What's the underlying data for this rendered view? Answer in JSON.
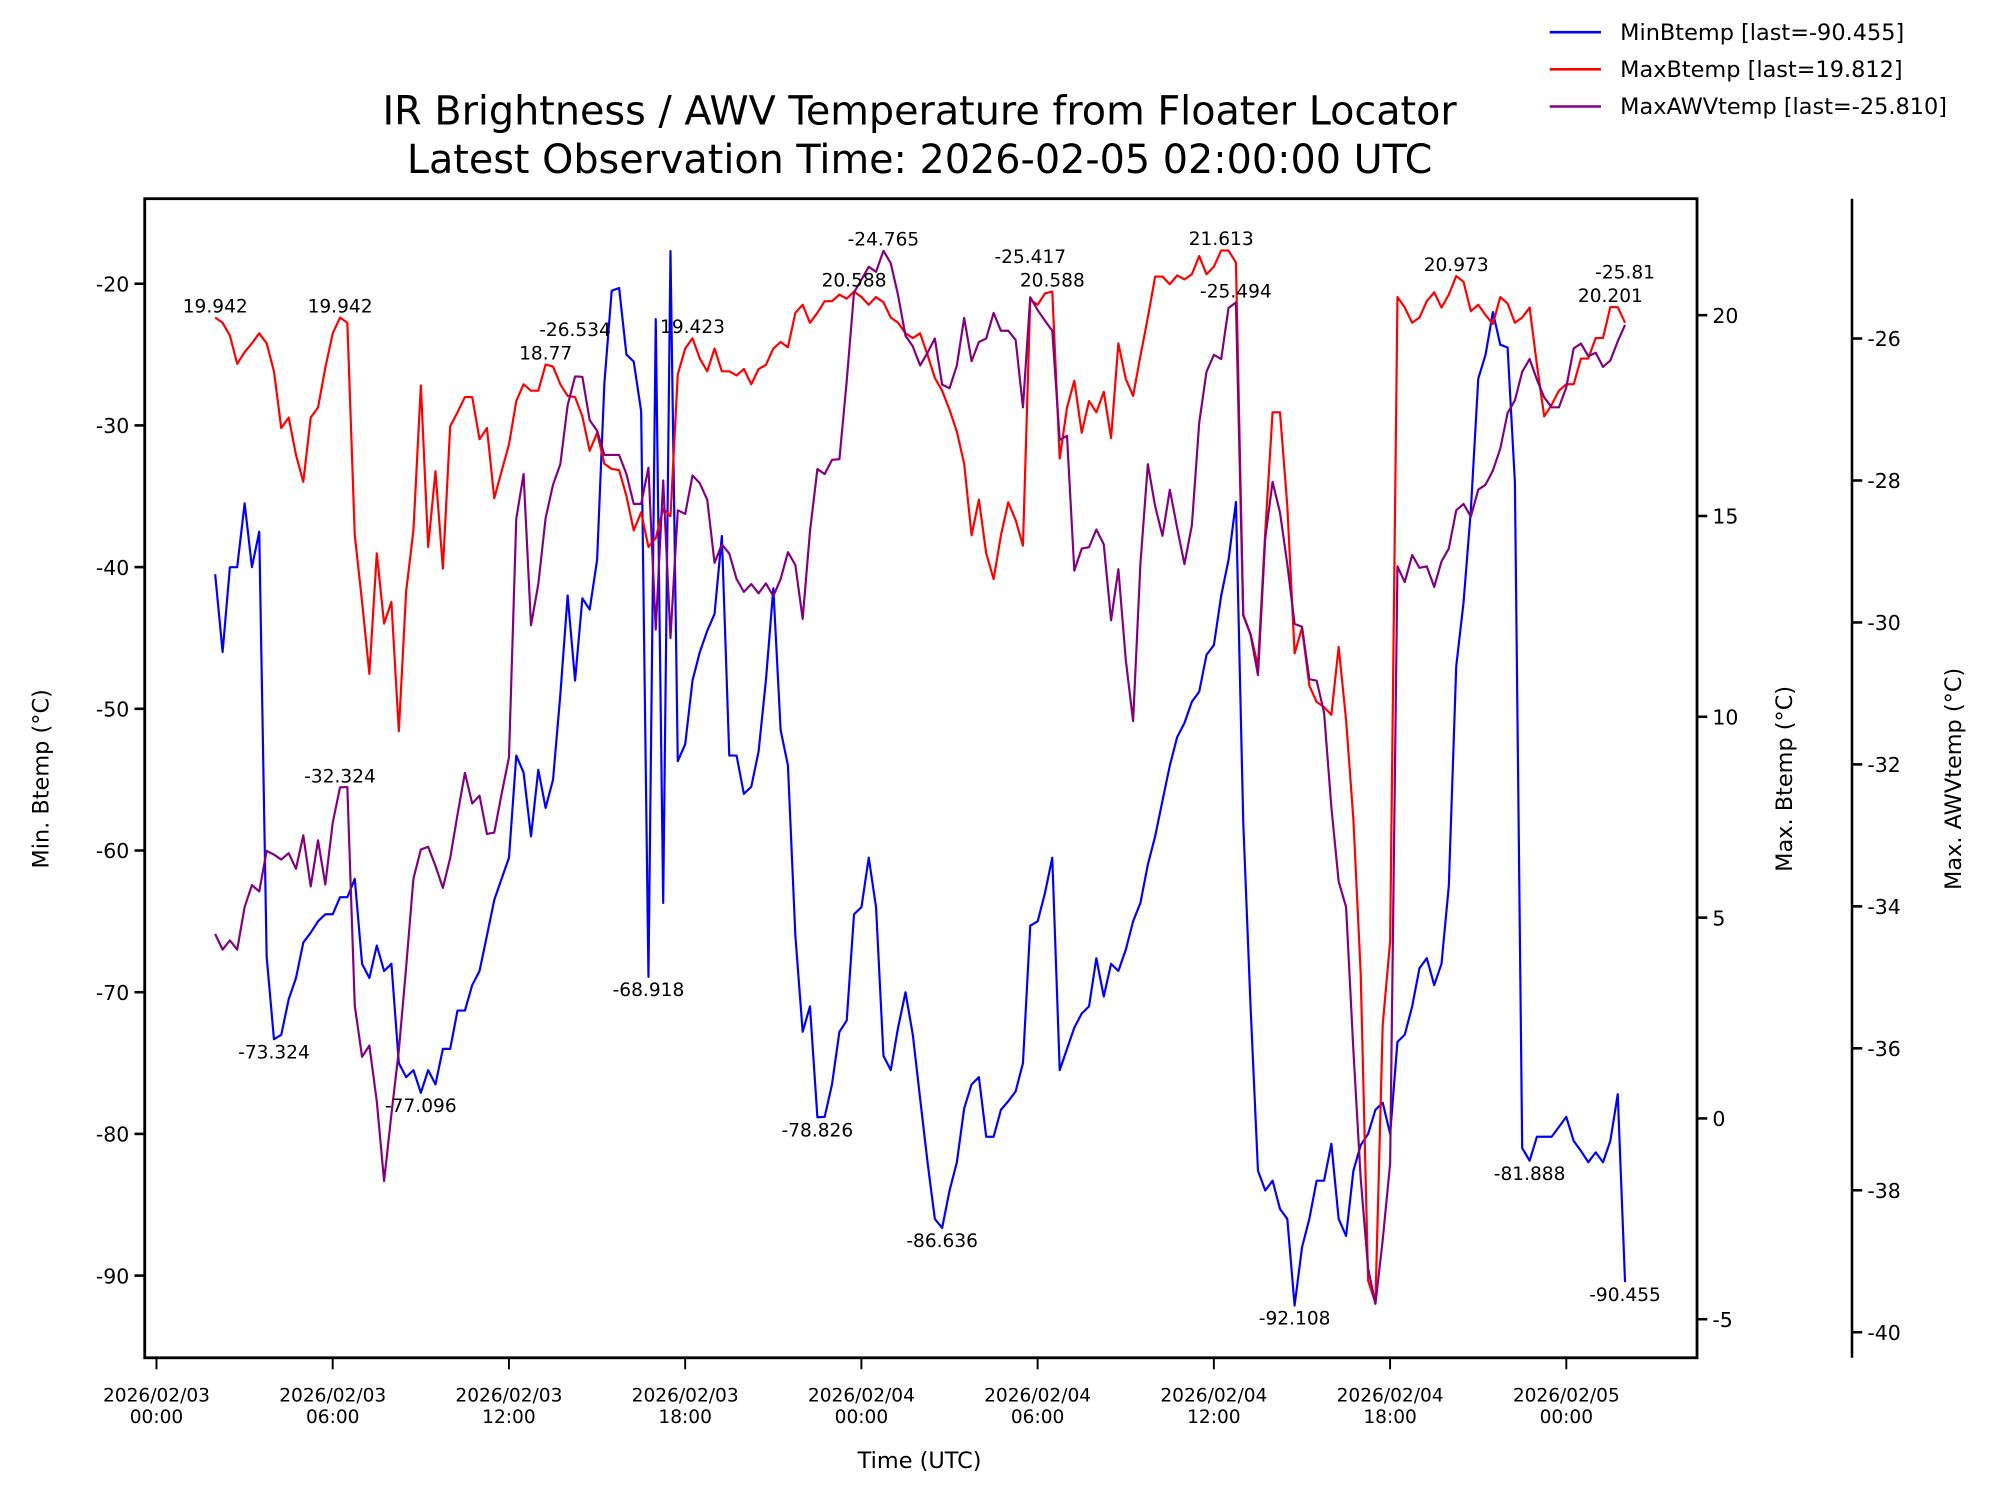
{
  "chart_data": {
    "type": "line",
    "title": "IR Brightness / AWV Temperature from Floater Locator",
    "subtitle": "Latest Observation Time: 2026-02-05 02:00:00 UTC",
    "xlabel": "Time (UTC)",
    "x_start": "2026-02-03 02:00",
    "x_start_hours": 2,
    "interval_hours": 0.25,
    "xlim_hours": [
      -0.4,
      52.45
    ],
    "x_ticks": [
      {
        "hours": 0,
        "line1": "2026/02/03",
        "line2": "00:00"
      },
      {
        "hours": 6,
        "line1": "2026/02/03",
        "line2": "06:00"
      },
      {
        "hours": 12,
        "line1": "2026/02/03",
        "line2": "12:00"
      },
      {
        "hours": 18,
        "line1": "2026/02/03",
        "line2": "18:00"
      },
      {
        "hours": 24,
        "line1": "2026/02/04",
        "line2": "00:00"
      },
      {
        "hours": 30,
        "line1": "2026/02/04",
        "line2": "06:00"
      },
      {
        "hours": 36,
        "line1": "2026/02/04",
        "line2": "12:00"
      },
      {
        "hours": 42,
        "line1": "2026/02/04",
        "line2": "18:00"
      },
      {
        "hours": 48,
        "line1": "2026/02/05",
        "line2": "00:00"
      }
    ],
    "axes": {
      "min": {
        "label": "Min. Btemp (°C)",
        "ylim": [
          -95.8,
          -14.0
        ],
        "ticks": [
          -90,
          -80,
          -70,
          -60,
          -50,
          -40,
          -30,
          -20
        ],
        "side": "left"
      },
      "max": {
        "label": "Max. Btemp (°C)",
        "ylim": [
          -5.96,
          22.9
        ],
        "ticks": [
          -5,
          0,
          5,
          10,
          15,
          20
        ],
        "side": "right"
      },
      "awv": {
        "label": "Max. AWVtemp (°C)",
        "ylim": [
          -40.36,
          -24.03
        ],
        "ticks": [
          -40,
          -38,
          -36,
          -34,
          -32,
          -30,
          -28,
          -26
        ],
        "side": "right-outer"
      }
    },
    "legend_position": "top-right (outside)",
    "series": [
      {
        "key": "min",
        "name": "MinBtemp [last=-90.455]",
        "color": "#0000ff",
        "axis": "min",
        "values": [
          -40.5,
          -46,
          -40,
          -40,
          -35.5,
          -40,
          -37.5,
          -67.5,
          -73.324,
          -73,
          -70.5,
          -69,
          -66.5,
          -65.8,
          -65,
          -64.5,
          -64.5,
          -63.3,
          -63.3,
          -62,
          -68,
          -69,
          -66.7,
          -68.5,
          -68,
          -75,
          -76,
          -75.5,
          -77.096,
          -75.5,
          -76.5,
          -74,
          -74,
          -71.3,
          -71.3,
          -69.5,
          -68.5,
          -66,
          -63.5,
          -62,
          -60.5,
          -53.3,
          -54.5,
          -59,
          -54.3,
          -57,
          -55,
          -49,
          -42,
          -48,
          -42.2,
          -43,
          -39.5,
          -27,
          -20.5,
          -20.3,
          -25,
          -25.5,
          -29,
          -68.918,
          -22.5,
          -63.7,
          -17.7,
          -53.7,
          -52.5,
          -48,
          -46,
          -44.5,
          -43.3,
          -37.8,
          -53.3,
          -53.3,
          -56,
          -55.5,
          -53,
          -48,
          -41.5,
          -51.5,
          -54,
          -66,
          -72.8,
          -71,
          -78.826,
          -78.8,
          -76.5,
          -72.8,
          -72,
          -64.5,
          -64,
          -60.5,
          -64,
          -74.5,
          -75.5,
          -72.5,
          -70,
          -73,
          -77.5,
          -82,
          -86,
          -86.636,
          -84,
          -82,
          -78.2,
          -76.5,
          -76,
          -80.2,
          -80.2,
          -78.3,
          -77.7,
          -77,
          -75,
          -65.3,
          -65,
          -63,
          -60.5,
          -75.5,
          -74,
          -72.5,
          -71.5,
          -71,
          -67.6,
          -70.3,
          -68,
          -68.5,
          -67,
          -65,
          -63.7,
          -61,
          -59,
          -56.5,
          -54,
          -52,
          -51,
          -49.5,
          -48.8,
          -46.2,
          -45.5,
          -42,
          -39.5,
          -35.4,
          -58,
          -71,
          -82.6,
          -84,
          -83.3,
          -85.3,
          -86,
          -92.108,
          -88,
          -86,
          -83.3,
          -83.3,
          -80.7,
          -86,
          -87.2,
          -82.6,
          -80.8,
          -80,
          -78.3,
          -77.8,
          -80,
          -73.5,
          -73,
          -71,
          -68.3,
          -67.6,
          -69.5,
          -68,
          -62.5,
          -47,
          -42.5,
          -36,
          -26.7,
          -25,
          -22,
          -24.3,
          -24.5,
          -34,
          -81,
          -81.888,
          -80.2,
          -80.2,
          -80.2,
          -79.5,
          -78.8,
          -80.5,
          -81.2,
          -82,
          -81.3,
          -82,
          -80.5,
          -77.2,
          -90.455
        ]
      },
      {
        "key": "max",
        "name": "MaxBtemp [last=19.812]",
        "color": "#ff0000",
        "axis": "max",
        "values": [
          19.942,
          19.81,
          19.49,
          18.79,
          19.08,
          19.3,
          19.55,
          19.3,
          18.6,
          17.19,
          17.45,
          16.52,
          15.85,
          17.45,
          17.7,
          18.69,
          19.55,
          19.942,
          19.81,
          14.52,
          12.86,
          11.07,
          14.07,
          12.32,
          12.86,
          9.64,
          13.12,
          14.64,
          18.25,
          14.23,
          16.11,
          13.69,
          17.23,
          17.58,
          17.96,
          17.96,
          16.91,
          17.19,
          15.44,
          16.11,
          16.78,
          17.86,
          18.28,
          18.12,
          18.12,
          18.77,
          18.72,
          18.28,
          17.99,
          17.96,
          17.48,
          16.62,
          17.07,
          16.3,
          16.17,
          16.14,
          15.5,
          14.64,
          15.09,
          14.23,
          14.45,
          15.18,
          14.99,
          18.53,
          19.17,
          19.423,
          18.92,
          18.6,
          19.17,
          18.6,
          18.6,
          18.5,
          18.66,
          18.28,
          18.66,
          18.76,
          19.17,
          19.33,
          19.2,
          20.06,
          20.26,
          19.81,
          20.06,
          20.35,
          20.35,
          20.51,
          20.41,
          20.588,
          20.45,
          20.26,
          20.45,
          20.32,
          19.94,
          19.81,
          19.55,
          19.43,
          19.55,
          19.01,
          18.44,
          18.12,
          17.64,
          17.1,
          16.3,
          14.52,
          15.41,
          14.07,
          13.43,
          14.52,
          15.34,
          14.9,
          14.26,
          20.38,
          20.26,
          20.54,
          20.588,
          16.43,
          17.7,
          18.37,
          17.07,
          17.86,
          17.58,
          18.09,
          16.94,
          19.3,
          18.41,
          17.99,
          18.98,
          19.94,
          20.96,
          20.96,
          20.77,
          20.99,
          20.89,
          21.02,
          21.47,
          21.02,
          21.21,
          21.613,
          21.61,
          21.31,
          12.54,
          12.06,
          11.26,
          14.61,
          17.58,
          17.58,
          15.25,
          11.58,
          12.22,
          10.78,
          10.37,
          10.24,
          10.05,
          11.74,
          9.92,
          7.44,
          3.61,
          -4.04,
          -4.6,
          2.33,
          4.41,
          20.45,
          20.19,
          19.81,
          19.94,
          20.35,
          20.57,
          20.19,
          20.51,
          20.973,
          20.83,
          20.1,
          20.26,
          20.0,
          19.78,
          20.45,
          20.29,
          19.81,
          19.94,
          20.19,
          18.76,
          17.48,
          17.77,
          18.12,
          18.28,
          18.28,
          18.92,
          18.92,
          19.43,
          19.43,
          20.201,
          20.2,
          19.812
        ]
      },
      {
        "key": "awv",
        "name": "MaxAWVtemp [last=-25.810]",
        "color": "#800080",
        "axis": "awv",
        "values": [
          -34.39,
          -34.61,
          -34.48,
          -34.61,
          -34.01,
          -33.7,
          -33.79,
          -33.22,
          -33.27,
          -33.34,
          -33.25,
          -33.47,
          -33.0,
          -33.72,
          -33.07,
          -33.69,
          -32.82,
          -32.324,
          -32.32,
          -35.4,
          -36.12,
          -35.96,
          -36.75,
          -37.87,
          -36.93,
          -36.03,
          -34.86,
          -33.61,
          -33.2,
          -33.16,
          -33.43,
          -33.74,
          -33.32,
          -32.71,
          -32.12,
          -32.55,
          -32.44,
          -32.98,
          -32.96,
          -32.42,
          -31.9,
          -28.54,
          -27.91,
          -30.04,
          -29.46,
          -28.53,
          -28.06,
          -27.77,
          -26.94,
          -26.534,
          -26.54,
          -27.15,
          -27.3,
          -27.64,
          -27.64,
          -27.64,
          -27.91,
          -28.33,
          -28.33,
          -27.82,
          -30.1,
          -28.0,
          -30.22,
          -28.42,
          -28.47,
          -27.93,
          -28.04,
          -28.27,
          -29.16,
          -28.9,
          -29.03,
          -29.39,
          -29.57,
          -29.46,
          -29.59,
          -29.45,
          -29.63,
          -29.39,
          -29.01,
          -29.19,
          -29.95,
          -28.72,
          -27.84,
          -27.91,
          -27.71,
          -27.7,
          -26.6,
          -25.35,
          -25.17,
          -24.99,
          -25.06,
          -24.765,
          -24.94,
          -25.39,
          -25.96,
          -26.11,
          -26.38,
          -26.2,
          -26.0,
          -26.65,
          -26.7,
          -26.38,
          -25.71,
          -26.32,
          -26.05,
          -26.0,
          -25.64,
          -25.89,
          -25.89,
          -26.02,
          -26.97,
          -25.417,
          -25.6,
          -25.75,
          -25.89,
          -27.43,
          -27.37,
          -29.27,
          -28.96,
          -28.94,
          -28.69,
          -28.9,
          -29.97,
          -29.25,
          -30.53,
          -31.39,
          -29.18,
          -27.77,
          -28.36,
          -28.78,
          -28.13,
          -28.67,
          -29.18,
          -28.63,
          -27.19,
          -26.47,
          -26.23,
          -26.29,
          -25.57,
          -25.494,
          -29.9,
          -30.17,
          -30.74,
          -28.81,
          -28.02,
          -28.45,
          -29.18,
          -30.02,
          -30.06,
          -30.8,
          -30.82,
          -31.27,
          -32.6,
          -33.65,
          -34.01,
          -36.03,
          -37.83,
          -39.1,
          -39.6,
          -38.7,
          -37.62,
          -29.21,
          -29.43,
          -29.05,
          -29.23,
          -29.21,
          -29.5,
          -29.14,
          -28.96,
          -28.42,
          -28.33,
          -28.51,
          -28.13,
          -28.06,
          -27.86,
          -27.55,
          -27.05,
          -26.87,
          -26.47,
          -26.29,
          -26.58,
          -26.83,
          -26.97,
          -26.97,
          -26.69,
          -26.14,
          -26.07,
          -26.25,
          -26.2,
          -26.4,
          -26.31,
          -26.04,
          -25.81
        ]
      }
    ],
    "annotations": [
      {
        "series": "max",
        "hours": 2,
        "value": 19.942,
        "text": "19.942",
        "position": "above"
      },
      {
        "series": "max",
        "hours": 6.25,
        "value": 19.942,
        "text": "19.942",
        "position": "above"
      },
      {
        "series": "max",
        "hours": 13.25,
        "value": 18.77,
        "text": "18.77",
        "position": "above"
      },
      {
        "series": "max",
        "hours": 18.25,
        "value": 19.423,
        "text": "19.423",
        "position": "above"
      },
      {
        "series": "max",
        "hours": 23.75,
        "value": 20.588,
        "text": "20.588",
        "position": "above"
      },
      {
        "series": "max",
        "hours": 30.5,
        "value": 20.588,
        "text": "20.588",
        "position": "above"
      },
      {
        "series": "max",
        "hours": 36.25,
        "value": 21.613,
        "text": "21.613",
        "position": "above"
      },
      {
        "series": "max",
        "hours": 44.25,
        "value": 20.973,
        "text": "20.973",
        "position": "above"
      },
      {
        "series": "max",
        "hours": 49.5,
        "value": 20.201,
        "text": "20.201",
        "position": "above"
      },
      {
        "series": "min",
        "hours": 4,
        "value": -73.324,
        "text": "-73.324",
        "position": "below"
      },
      {
        "series": "min",
        "hours": 9,
        "value": -77.096,
        "text": "-77.096",
        "position": "below"
      },
      {
        "series": "min",
        "hours": 16.75,
        "value": -68.918,
        "text": "-68.918",
        "position": "below"
      },
      {
        "series": "min",
        "hours": 22.5,
        "value": -78.826,
        "text": "-78.826",
        "position": "below"
      },
      {
        "series": "min",
        "hours": 26.75,
        "value": -86.636,
        "text": "-86.636",
        "position": "below"
      },
      {
        "series": "min",
        "hours": 38.75,
        "value": -92.108,
        "text": "-92.108",
        "position": "below"
      },
      {
        "series": "min",
        "hours": 46.75,
        "value": -81.888,
        "text": "-81.888",
        "position": "below"
      },
      {
        "series": "min",
        "hours": 50,
        "value": -90.455,
        "text": "-90.455",
        "position": "below"
      },
      {
        "series": "awv",
        "hours": 6.25,
        "value": -32.324,
        "text": "-32.324",
        "position": "above"
      },
      {
        "series": "awv",
        "hours": 14.25,
        "value": -26.534,
        "text": "-26.534",
        "position": "above"
      },
      {
        "series": "awv",
        "hours": 24.75,
        "value": -24.765,
        "text": "-24.765",
        "position": "above"
      },
      {
        "series": "awv",
        "hours": 29.75,
        "value": -25.417,
        "text": "-25.417",
        "position": "above"
      },
      {
        "series": "awv",
        "hours": 36.75,
        "value": -25.494,
        "text": "-25.494",
        "position": "above"
      },
      {
        "series": "awv",
        "hours": 50,
        "value": -25.81,
        "text": "-25.81",
        "position": "above"
      }
    ]
  }
}
